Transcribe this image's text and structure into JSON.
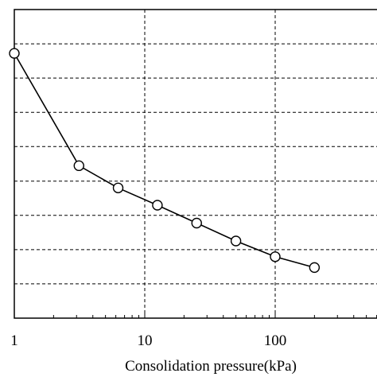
{
  "chart_data": {
    "type": "line",
    "xscale": "log",
    "xlim": [
      1,
      1000
    ],
    "ylim": [
      0,
      1
    ],
    "grid": true,
    "grid_style": "dashed",
    "xlabel": "Consolidation pressure(kPa)",
    "ylabel": "",
    "x_ticks": [
      1,
      10,
      100
    ],
    "x_tick_labels": [
      "1",
      "10",
      "100"
    ],
    "y_grid_lines": [
      0.111,
      0.222,
      0.333,
      0.444,
      0.556,
      0.667,
      0.778,
      0.889
    ],
    "series": [
      {
        "marker": "circle",
        "color": "#000000",
        "x": [
          1,
          3.13,
          6.25,
          12.5,
          25,
          50,
          100,
          200
        ],
        "y": [
          0.858,
          0.494,
          0.422,
          0.366,
          0.308,
          0.25,
          0.199,
          0.164
        ]
      }
    ]
  }
}
